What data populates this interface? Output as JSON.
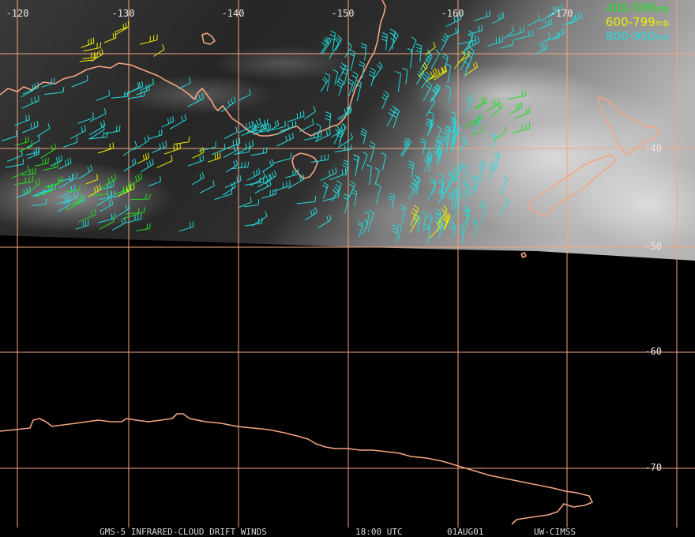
{
  "map": {
    "lon_labels": [
      "-120",
      "-130",
      "-140",
      "-150",
      "-160",
      "-170"
    ],
    "lat_labels": [
      "-40",
      "-50",
      "-60",
      "-70"
    ],
    "grid_color": "#f4a582",
    "coast_color": "#f4a582"
  },
  "legend": [
    {
      "range": "400-599",
      "unit": "mb",
      "color": "#22dd22"
    },
    {
      "range": "600-799",
      "unit": "mb",
      "color": "#eeee00"
    },
    {
      "range": "800-950",
      "unit": "mb",
      "color": "#22dddd"
    }
  ],
  "footer": {
    "title": "GMS-5 INFRARED-CLOUD DRIFT WINDS",
    "time": "18:00 UTC",
    "date": "01AUG01",
    "source": "UW-CIMSS"
  }
}
